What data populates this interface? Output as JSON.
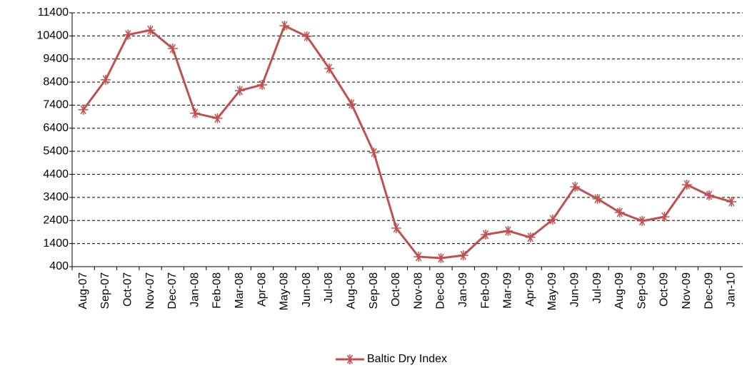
{
  "chart_data": {
    "type": "line",
    "categories": [
      "Aug-07",
      "Sep-07",
      "Oct-07",
      "Nov-07",
      "Dec-07",
      "Jan-08",
      "Feb-08",
      "Mar-08",
      "Apr-08",
      "May-08",
      "Jun-08",
      "Jul-08",
      "Aug-08",
      "Sep-08",
      "Oct-08",
      "Nov-08",
      "Dec-08",
      "Jan-09",
      "Feb-09",
      "Mar-09",
      "Apr-09",
      "May-09",
      "Jun-09",
      "Jul-09",
      "Aug-09",
      "Sep-09",
      "Oct-09",
      "Nov-09",
      "Dec-09",
      "Jan-10"
    ],
    "series": [
      {
        "name": "Baltic Dry Index",
        "color": "#c0504d",
        "values": [
          7200,
          8500,
          10450,
          10650,
          9850,
          7050,
          6830,
          8030,
          8280,
          10840,
          10380,
          8990,
          7450,
          5340,
          2070,
          830,
          770,
          890,
          1790,
          1950,
          1670,
          2440,
          3860,
          3340,
          2750,
          2380,
          2560,
          3950,
          3490,
          3210
        ]
      }
    ],
    "ylim": [
      400,
      11400
    ],
    "yticks": [
      400,
      1400,
      2400,
      3400,
      4400,
      5400,
      6400,
      7400,
      8400,
      9400,
      10400,
      11400
    ],
    "grid": true,
    "legend": "bottom"
  }
}
